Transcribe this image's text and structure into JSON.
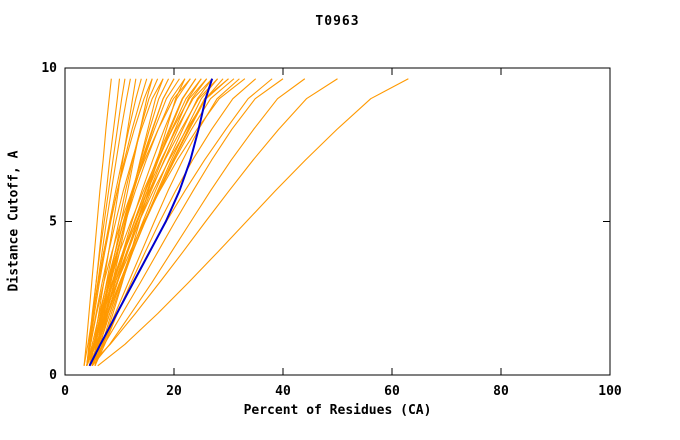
{
  "chart_data": {
    "type": "line",
    "title": "T0963",
    "xlabel": "Percent of Residues (CA)",
    "ylabel": "Distance Cutoff, A",
    "xlim": [
      0,
      100
    ],
    "ylim": [
      0,
      10
    ],
    "xticks": [
      0,
      20,
      40,
      60,
      80,
      100
    ],
    "yticks": [
      0,
      5,
      10
    ],
    "grid": false,
    "legend": "none",
    "colors": {
      "models": "#ff9900",
      "highlight": "#0000cd",
      "axis": "#000000",
      "background": "#ffffff"
    },
    "y_samples": [
      0.3,
      1,
      2,
      3,
      4,
      5,
      6,
      7,
      8,
      9,
      9.65
    ],
    "model_curves_x": [
      [
        3.5,
        3.9,
        4.4,
        4.9,
        5.4,
        5.9,
        6.4,
        7.0,
        7.5,
        8.1,
        8.5
      ],
      [
        4.0,
        4.5,
        5.1,
        5.7,
        6.3,
        6.9,
        7.6,
        8.2,
        8.9,
        9.6,
        10.0
      ],
      [
        4.0,
        4.4,
        5.0,
        5.7,
        6.4,
        7.2,
        8.0,
        8.8,
        9.6,
        10.4,
        11.0
      ],
      [
        4.0,
        4.5,
        5.2,
        6.0,
        6.8,
        7.6,
        8.5,
        9.4,
        10.3,
        11.3,
        12.0
      ],
      [
        4.5,
        5.3,
        6.2,
        7.1,
        8.0,
        8.9,
        9.8,
        10.6,
        11.5,
        12.4,
        13.0
      ],
      [
        3.5,
        4.2,
        5.1,
        6.1,
        7.1,
        8.2,
        9.3,
        10.5,
        11.7,
        13.0,
        14.0
      ],
      [
        4.0,
        4.6,
        5.4,
        6.3,
        7.3,
        8.4,
        9.6,
        10.9,
        12.3,
        13.9,
        15.0
      ],
      [
        5.0,
        5.9,
        7.0,
        8.1,
        9.2,
        10.3,
        11.5,
        12.6,
        13.8,
        15.0,
        16.0
      ],
      [
        4.0,
        4.5,
        5.2,
        6.1,
        7.1,
        8.3,
        9.6,
        11.1,
        12.7,
        14.5,
        16.0
      ],
      [
        4.5,
        5.4,
        6.5,
        7.6,
        8.7,
        9.9,
        11.1,
        12.4,
        13.8,
        15.4,
        17.0
      ],
      [
        5.0,
        6.1,
        7.4,
        8.7,
        10.0,
        11.2,
        12.5,
        13.8,
        15.2,
        16.6,
        18.0
      ],
      [
        4.0,
        4.7,
        5.7,
        6.8,
        8.0,
        9.3,
        10.7,
        12.3,
        14.0,
        16.0,
        18.0
      ],
      [
        5.0,
        6.0,
        7.2,
        8.4,
        9.7,
        11.0,
        12.4,
        13.9,
        15.5,
        17.2,
        19.0
      ],
      [
        4.5,
        5.5,
        6.8,
        8.2,
        9.6,
        11.1,
        12.6,
        14.3,
        16.1,
        18.0,
        20.0
      ],
      [
        5.0,
        5.7,
        6.7,
        7.9,
        9.2,
        10.7,
        12.3,
        14.1,
        16.0,
        18.0,
        20.0
      ],
      [
        4.0,
        5.0,
        6.3,
        7.7,
        9.2,
        10.8,
        12.5,
        14.4,
        16.4,
        18.6,
        21.0
      ],
      [
        5.5,
        7.0,
        8.8,
        10.5,
        12.1,
        13.7,
        15.3,
        16.9,
        18.6,
        20.3,
        22.0
      ],
      [
        4.5,
        5.4,
        6.6,
        8.0,
        9.5,
        11.1,
        12.9,
        14.9,
        17.1,
        19.5,
        22.0
      ],
      [
        5.0,
        6.1,
        7.5,
        9.0,
        10.6,
        12.3,
        14.1,
        16.1,
        18.2,
        20.5,
        23.0
      ],
      [
        4.0,
        4.7,
        5.8,
        7.1,
        8.6,
        10.3,
        12.3,
        14.6,
        17.1,
        19.9,
        23.0
      ],
      [
        5.0,
        6.1,
        7.6,
        9.2,
        10.9,
        12.7,
        14.7,
        16.8,
        19.1,
        21.5,
        24.0
      ],
      [
        4.5,
        6.0,
        7.8,
        9.6,
        11.4,
        13.2,
        15.1,
        17.1,
        19.3,
        21.6,
        24.0
      ],
      [
        5.5,
        6.5,
        7.9,
        9.5,
        11.3,
        13.3,
        15.5,
        17.8,
        20.2,
        22.6,
        25.0
      ],
      [
        4.0,
        5.3,
        7.0,
        8.8,
        10.7,
        12.7,
        14.8,
        17.1,
        19.6,
        22.2,
        25.0
      ],
      [
        5.0,
        6.2,
        7.8,
        9.6,
        11.5,
        13.6,
        15.8,
        18.2,
        20.7,
        23.3,
        26.0
      ],
      [
        4.5,
        5.3,
        6.6,
        8.2,
        10.0,
        12.1,
        14.4,
        16.9,
        19.7,
        22.8,
        26.0
      ],
      [
        5.0,
        6.4,
        8.2,
        10.1,
        12.1,
        14.3,
        16.6,
        19.0,
        21.6,
        24.3,
        27.0
      ],
      [
        4.0,
        5.2,
        6.8,
        8.6,
        10.6,
        12.8,
        15.1,
        17.6,
        20.4,
        23.5,
        27.0
      ],
      [
        5.5,
        6.8,
        8.5,
        10.4,
        12.4,
        14.6,
        17.0,
        19.5,
        22.2,
        25.0,
        28.0
      ],
      [
        4.5,
        5.5,
        7.0,
        8.8,
        10.8,
        13.1,
        15.6,
        18.3,
        21.3,
        24.5,
        28.0
      ],
      [
        5.0,
        6.4,
        8.2,
        10.2,
        12.4,
        14.7,
        17.2,
        19.9,
        22.8,
        25.8,
        29.0
      ],
      [
        4.0,
        5.7,
        7.8,
        10.0,
        12.3,
        14.7,
        17.2,
        19.8,
        22.6,
        25.6,
        30.0
      ],
      [
        5.0,
        5.9,
        7.4,
        9.2,
        11.3,
        13.6,
        16.2,
        19.1,
        22.3,
        25.9,
        30.0
      ],
      [
        4.5,
        6.0,
        7.9,
        10.0,
        12.3,
        14.7,
        17.3,
        20.1,
        23.2,
        26.7,
        31.0
      ],
      [
        5.0,
        6.9,
        9.2,
        11.6,
        14.0,
        16.4,
        18.9,
        21.6,
        24.5,
        27.9,
        32.0
      ],
      [
        4.0,
        5.4,
        7.3,
        9.5,
        11.9,
        14.5,
        17.4,
        20.6,
        24.2,
        28.3,
        33.0
      ],
      [
        5.5,
        7.3,
        9.6,
        12.1,
        14.7,
        17.4,
        20.3,
        23.4,
        26.9,
        30.8,
        35.0
      ],
      [
        5.0,
        7.0,
        9.6,
        12.4,
        15.4,
        18.6,
        22.0,
        25.6,
        29.5,
        33.6,
        38.0
      ],
      [
        4.5,
        7.2,
        10.5,
        13.8,
        17.0,
        20.2,
        23.5,
        26.9,
        30.6,
        34.9,
        40.0
      ],
      [
        5.0,
        8.2,
        12.1,
        15.9,
        19.5,
        23.1,
        26.7,
        30.5,
        34.6,
        39.0,
        44.0
      ],
      [
        4.5,
        8.3,
        12.9,
        17.3,
        21.6,
        25.8,
        30.1,
        34.5,
        39.2,
        44.3,
        50.0
      ],
      [
        6.0,
        11.0,
        17.0,
        22.6,
        28.0,
        33.3,
        38.6,
        44.1,
        49.9,
        56.1,
        63.0
      ]
    ],
    "highlight_curve_x": [
      4.5,
      6.5,
      9.5,
      12.5,
      15.5,
      18.5,
      21.0,
      23.0,
      24.5,
      25.8,
      27.0
    ]
  }
}
